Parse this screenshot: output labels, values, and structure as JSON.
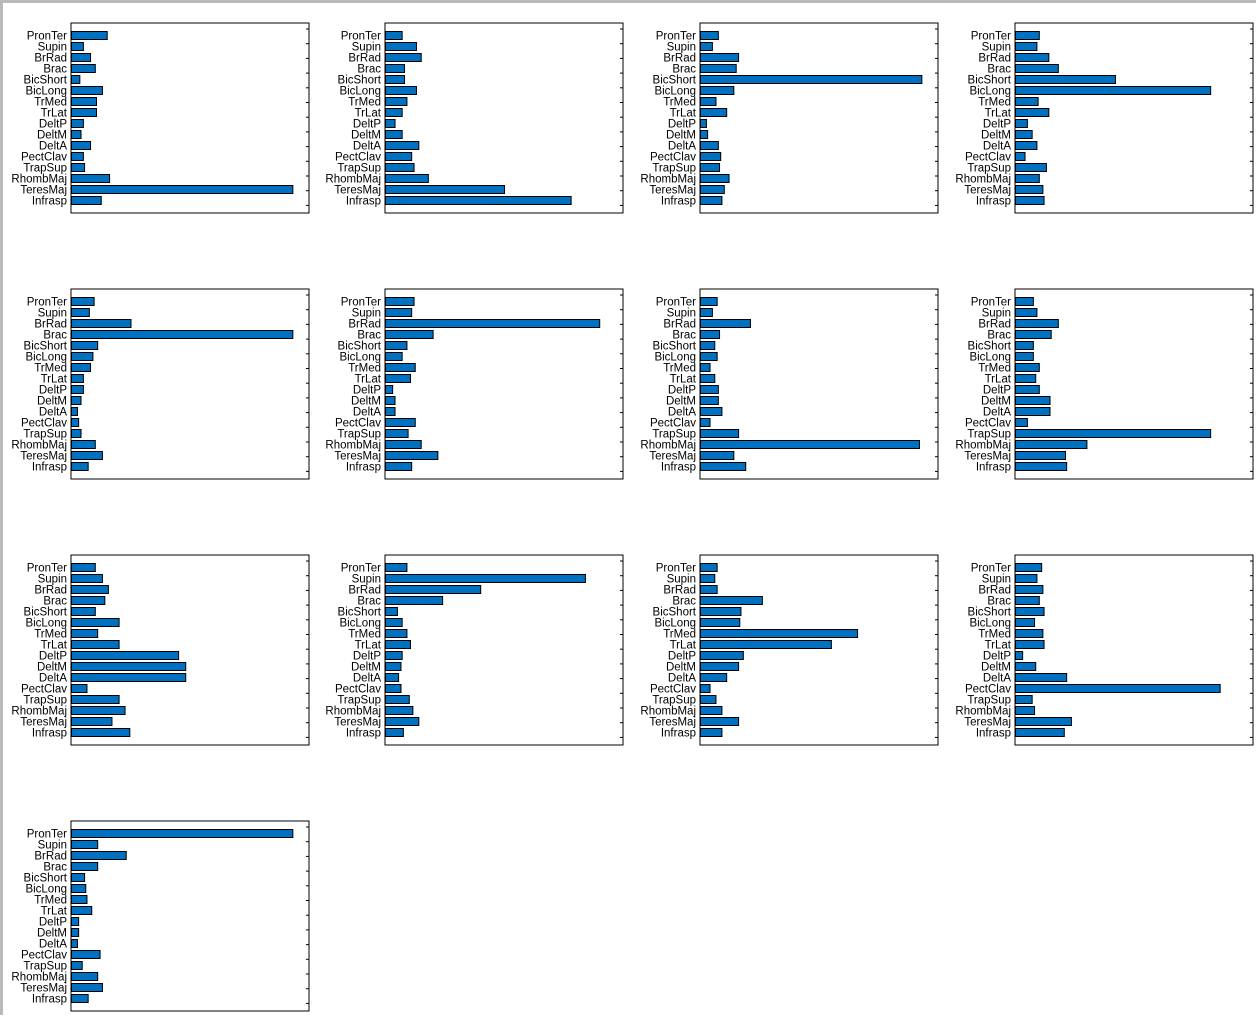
{
  "bar_color": "#0070c0",
  "chart_data": [
    {
      "type": "bar",
      "orientation": "horizontal",
      "xlim": [
        0,
        1
      ],
      "categories": [
        "PronTer",
        "Supin",
        "BrRad",
        "Brac",
        "BicShort",
        "BicLong",
        "TrMed",
        "TrLat",
        "DeltP",
        "DeltM",
        "DeltA",
        "PectClav",
        "TrapSup",
        "RhombMaj",
        "TeresMaj",
        "Infrasp"
      ],
      "values": [
        0.15,
        0.05,
        0.08,
        0.1,
        0.035,
        0.13,
        0.105,
        0.105,
        0.05,
        0.04,
        0.08,
        0.05,
        0.055,
        0.16,
        0.93,
        0.125
      ]
    },
    {
      "type": "bar",
      "orientation": "horizontal",
      "xlim": [
        0,
        1
      ],
      "categories": [
        "PronTer",
        "Supin",
        "BrRad",
        "Brac",
        "BicShort",
        "BicLong",
        "TrMed",
        "TrLat",
        "DeltP",
        "DeltM",
        "DeltA",
        "PectClav",
        "TrapSup",
        "RhombMaj",
        "TeresMaj",
        "Infrasp"
      ],
      "values": [
        0.07,
        0.13,
        0.15,
        0.08,
        0.08,
        0.13,
        0.09,
        0.07,
        0.04,
        0.07,
        0.14,
        0.11,
        0.12,
        0.18,
        0.5,
        0.78
      ]
    },
    {
      "type": "bar",
      "orientation": "horizontal",
      "xlim": [
        0,
        1
      ],
      "categories": [
        "PronTer",
        "Supin",
        "BrRad",
        "Brac",
        "BicShort",
        "BicLong",
        "TrMed",
        "TrLat",
        "DeltP",
        "DeltM",
        "DeltA",
        "PectClav",
        "TrapSup",
        "RhombMaj",
        "TeresMaj",
        "Infrasp"
      ],
      "values": [
        0.075,
        0.05,
        0.16,
        0.15,
        0.93,
        0.14,
        0.065,
        0.11,
        0.025,
        0.03,
        0.075,
        0.085,
        0.08,
        0.12,
        0.1,
        0.09
      ]
    },
    {
      "type": "bar",
      "orientation": "horizontal",
      "xlim": [
        0,
        1
      ],
      "categories": [
        "PronTer",
        "Supin",
        "BrRad",
        "Brac",
        "BicShort",
        "BicLong",
        "TrMed",
        "TrLat",
        "DeltP",
        "DeltM",
        "DeltA",
        "PectClav",
        "TrapSup",
        "RhombMaj",
        "TeresMaj",
        "Infrasp"
      ],
      "values": [
        0.1,
        0.09,
        0.14,
        0.18,
        0.42,
        0.82,
        0.095,
        0.14,
        0.05,
        0.07,
        0.09,
        0.04,
        0.13,
        0.1,
        0.115,
        0.12
      ]
    },
    {
      "type": "bar",
      "orientation": "horizontal",
      "xlim": [
        0,
        1
      ],
      "categories": [
        "PronTer",
        "Supin",
        "BrRad",
        "Brac",
        "BicShort",
        "BicLong",
        "TrMed",
        "TrLat",
        "DeltP",
        "DeltM",
        "DeltA",
        "PectClav",
        "TrapSup",
        "RhombMaj",
        "TeresMaj",
        "Infrasp"
      ],
      "values": [
        0.095,
        0.075,
        0.25,
        0.93,
        0.11,
        0.09,
        0.08,
        0.05,
        0.05,
        0.04,
        0.025,
        0.03,
        0.04,
        0.1,
        0.13,
        0.07
      ]
    },
    {
      "type": "bar",
      "orientation": "horizontal",
      "xlim": [
        0,
        1
      ],
      "categories": [
        "PronTer",
        "Supin",
        "BrRad",
        "Brac",
        "BicShort",
        "BicLong",
        "TrMed",
        "TrLat",
        "DeltP",
        "DeltM",
        "DeltA",
        "PectClav",
        "TrapSup",
        "RhombMaj",
        "TeresMaj",
        "Infrasp"
      ],
      "values": [
        0.12,
        0.11,
        0.9,
        0.2,
        0.09,
        0.07,
        0.125,
        0.105,
        0.03,
        0.04,
        0.04,
        0.125,
        0.095,
        0.15,
        0.22,
        0.11
      ]
    },
    {
      "type": "bar",
      "orientation": "horizontal",
      "xlim": [
        0,
        1
      ],
      "categories": [
        "PronTer",
        "Supin",
        "BrRad",
        "Brac",
        "BicShort",
        "BicLong",
        "TrMed",
        "TrLat",
        "DeltP",
        "DeltM",
        "DeltA",
        "PectClav",
        "TrapSup",
        "RhombMaj",
        "TeresMaj",
        "Infrasp"
      ],
      "values": [
        0.07,
        0.05,
        0.21,
        0.08,
        0.06,
        0.07,
        0.04,
        0.06,
        0.075,
        0.075,
        0.09,
        0.04,
        0.16,
        0.92,
        0.14,
        0.19
      ]
    },
    {
      "type": "bar",
      "orientation": "horizontal",
      "xlim": [
        0,
        1
      ],
      "categories": [
        "PronTer",
        "Supin",
        "BrRad",
        "Brac",
        "BicShort",
        "BicLong",
        "TrMed",
        "TrLat",
        "DeltP",
        "DeltM",
        "DeltA",
        "PectClav",
        "TrapSup",
        "RhombMaj",
        "TeresMaj",
        "Infrasp"
      ],
      "values": [
        0.075,
        0.09,
        0.18,
        0.15,
        0.075,
        0.075,
        0.1,
        0.085,
        0.1,
        0.145,
        0.145,
        0.05,
        0.82,
        0.3,
        0.21,
        0.215
      ]
    },
    {
      "type": "bar",
      "orientation": "horizontal",
      "xlim": [
        0,
        1
      ],
      "categories": [
        "PronTer",
        "Supin",
        "BrRad",
        "Brac",
        "BicShort",
        "BicLong",
        "TrMed",
        "TrLat",
        "DeltP",
        "DeltM",
        "DeltA",
        "PectClav",
        "TrapSup",
        "RhombMaj",
        "TeresMaj",
        "Infrasp"
      ],
      "values": [
        0.1,
        0.13,
        0.155,
        0.14,
        0.1,
        0.2,
        0.11,
        0.2,
        0.45,
        0.48,
        0.48,
        0.065,
        0.2,
        0.225,
        0.17,
        0.245
      ]
    },
    {
      "type": "bar",
      "orientation": "horizontal",
      "xlim": [
        0,
        1
      ],
      "categories": [
        "PronTer",
        "Supin",
        "BrRad",
        "Brac",
        "BicShort",
        "BicLong",
        "TrMed",
        "TrLat",
        "DeltP",
        "DeltM",
        "DeltA",
        "PectClav",
        "TrapSup",
        "RhombMaj",
        "TeresMaj",
        "Infrasp"
      ],
      "values": [
        0.09,
        0.84,
        0.4,
        0.24,
        0.05,
        0.07,
        0.09,
        0.105,
        0.07,
        0.065,
        0.055,
        0.065,
        0.1,
        0.115,
        0.14,
        0.075
      ]
    },
    {
      "type": "bar",
      "orientation": "horizontal",
      "xlim": [
        0,
        1
      ],
      "categories": [
        "PronTer",
        "Supin",
        "BrRad",
        "Brac",
        "BicShort",
        "BicLong",
        "TrMed",
        "TrLat",
        "DeltP",
        "DeltM",
        "DeltA",
        "PectClav",
        "TrapSup",
        "RhombMaj",
        "TeresMaj",
        "Infrasp"
      ],
      "values": [
        0.07,
        0.06,
        0.07,
        0.26,
        0.17,
        0.165,
        0.66,
        0.55,
        0.18,
        0.16,
        0.11,
        0.04,
        0.065,
        0.09,
        0.16,
        0.09
      ]
    },
    {
      "type": "bar",
      "orientation": "horizontal",
      "xlim": [
        0,
        1
      ],
      "categories": [
        "PronTer",
        "Supin",
        "BrRad",
        "Brac",
        "BicShort",
        "BicLong",
        "TrMed",
        "TrLat",
        "DeltP",
        "DeltM",
        "DeltA",
        "PectClav",
        "TrapSup",
        "RhombMaj",
        "TeresMaj",
        "Infrasp"
      ],
      "values": [
        0.11,
        0.09,
        0.115,
        0.1,
        0.12,
        0.08,
        0.115,
        0.12,
        0.03,
        0.085,
        0.215,
        0.86,
        0.07,
        0.08,
        0.235,
        0.205
      ]
    },
    {
      "type": "bar",
      "orientation": "horizontal",
      "xlim": [
        0,
        1
      ],
      "categories": [
        "PronTer",
        "Supin",
        "BrRad",
        "Brac",
        "BicShort",
        "BicLong",
        "TrMed",
        "TrLat",
        "DeltP",
        "DeltM",
        "DeltA",
        "PectClav",
        "TrapSup",
        "RhombMaj",
        "TeresMaj",
        "Infrasp"
      ],
      "values": [
        0.93,
        0.11,
        0.23,
        0.11,
        0.055,
        0.06,
        0.065,
        0.085,
        0.03,
        0.03,
        0.025,
        0.12,
        0.045,
        0.11,
        0.13,
        0.07
      ]
    }
  ]
}
